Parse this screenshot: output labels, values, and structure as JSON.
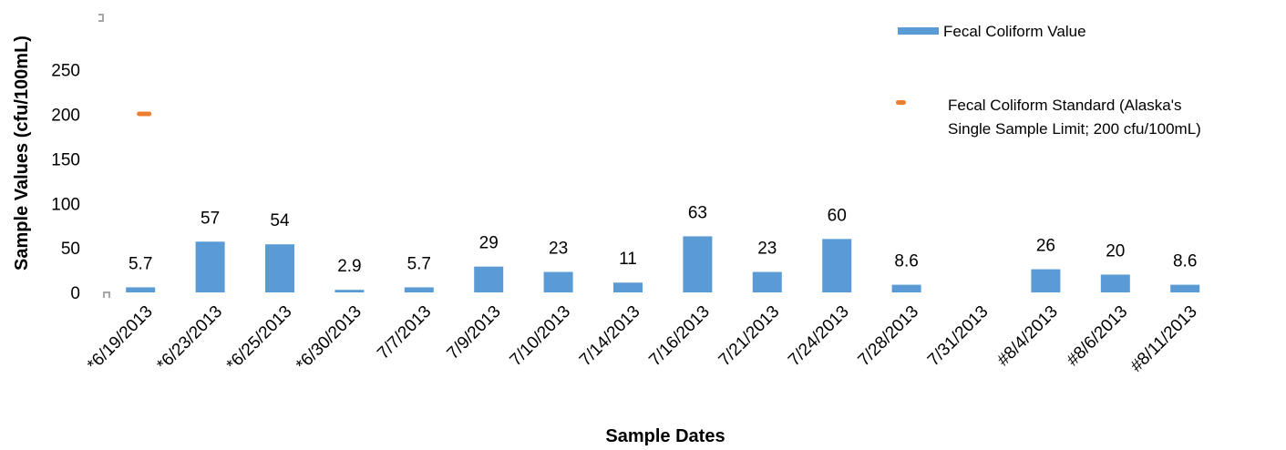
{
  "chart_data": {
    "type": "bar",
    "title": "",
    "xlabel": "Sample Dates",
    "ylabel": "Sample Values (cfu/100mL)",
    "ylim": [
      0,
      250
    ],
    "yticks": [
      0,
      50,
      100,
      150,
      200,
      250
    ],
    "grid": false,
    "legend_position": "top-right",
    "categories": [
      "*6/19/2013",
      "*6/23/2013",
      "*6/25/2013",
      "*6/30/2013",
      "7/7/2013",
      "7/9/2013",
      "7/10/2013",
      "7/14/2013",
      "7/16/2013",
      "7/21/2013",
      "7/24/2013",
      "7/28/2013",
      "7/31/2013",
      "#8/4/2013",
      "#8/6/2013",
      "#8/11/2013"
    ],
    "series": [
      {
        "name": "Fecal Coliform Value",
        "kind": "bar",
        "color": "#5b9bd5",
        "values": [
          5.7,
          57,
          54,
          2.9,
          5.7,
          29,
          23,
          11,
          63,
          23,
          60,
          8.6,
          null,
          26,
          20,
          8.6
        ],
        "labels": [
          "5.7",
          "57",
          "54",
          "2.9",
          "5.7",
          "29",
          "23",
          "11",
          "63",
          "23",
          "60",
          "8.6",
          "",
          "26",
          "20",
          "8.6"
        ]
      },
      {
        "name": "Fecal Coliform Standard (Alaska's Single Sample Limit; 200 cfu/100mL)",
        "name_lines": [
          "Fecal Coliform Standard (Alaska's",
          "Single Sample Limit; 200 cfu/100mL)"
        ],
        "kind": "marker",
        "color": "#ed7d31",
        "values": [
          200,
          null,
          null,
          null,
          null,
          null,
          null,
          null,
          null,
          null,
          null,
          null,
          null,
          null,
          null,
          null
        ]
      }
    ]
  }
}
